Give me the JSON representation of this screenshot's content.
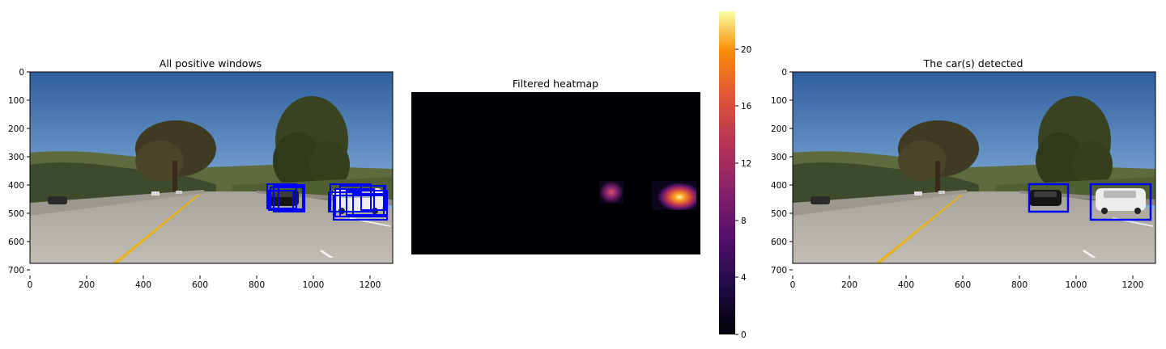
{
  "panels": [
    {
      "title": "All positive windows",
      "x_ticks": [
        "0",
        "200",
        "400",
        "600",
        "800",
        "1000",
        "1200"
      ],
      "y_ticks": [
        "0",
        "100",
        "200",
        "300",
        "400",
        "500",
        "600",
        "700"
      ],
      "box_color": "#0000ff",
      "boxes_description": "many overlapping blue detection windows"
    },
    {
      "title": "Filtered heatmap",
      "colormap": "inferno"
    },
    {
      "title": "The car(s) detected",
      "x_ticks": [
        "0",
        "200",
        "400",
        "600",
        "800",
        "1000",
        "1200"
      ],
      "y_ticks": [
        "0",
        "100",
        "200",
        "300",
        "400",
        "500",
        "600",
        "700"
      ],
      "box_color": "#0000ff"
    }
  ],
  "colorbar": {
    "ticks": [
      "0",
      "4",
      "8",
      "12",
      "16",
      "20"
    ]
  }
}
